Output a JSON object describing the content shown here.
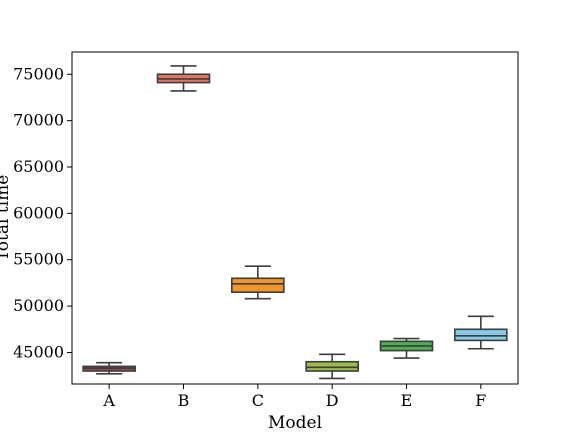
{
  "chart_data": {
    "type": "box",
    "title": "",
    "xlabel": "Model",
    "ylabel": "Total time",
    "categories": [
      "A",
      "B",
      "C",
      "D",
      "E",
      "F"
    ],
    "ylim": [
      41600,
      77400
    ],
    "yticks": [
      45000,
      50000,
      55000,
      60000,
      65000,
      70000,
      75000
    ],
    "ytick_labels": [
      "45000",
      "50000",
      "55000",
      "60000",
      "65000",
      "70000",
      "75000"
    ],
    "grid": false,
    "boxes": [
      {
        "category": "A",
        "whislo": 42700,
        "q1": 43000,
        "med": 43300,
        "q3": 43500,
        "whishi": 43900,
        "color": "#9b4b45"
      },
      {
        "category": "B",
        "whislo": 73200,
        "q1": 74100,
        "med": 74500,
        "q3": 75000,
        "whishi": 75900,
        "color": "#e8735f"
      },
      {
        "category": "C",
        "whislo": 50800,
        "q1": 51500,
        "med": 52400,
        "q3": 53000,
        "whishi": 54300,
        "color": "#f0962a"
      },
      {
        "category": "D",
        "whislo": 42200,
        "q1": 43000,
        "med": 43400,
        "q3": 44000,
        "whishi": 44800,
        "color": "#9bbc4a"
      },
      {
        "category": "E",
        "whislo": 44400,
        "q1": 45200,
        "med": 45700,
        "q3": 46200,
        "whishi": 46500,
        "color": "#4caf50"
      },
      {
        "category": "F",
        "whislo": 45400,
        "q1": 46300,
        "med": 46800,
        "q3": 47500,
        "whishi": 48900,
        "color": "#87cbe6"
      }
    ]
  }
}
